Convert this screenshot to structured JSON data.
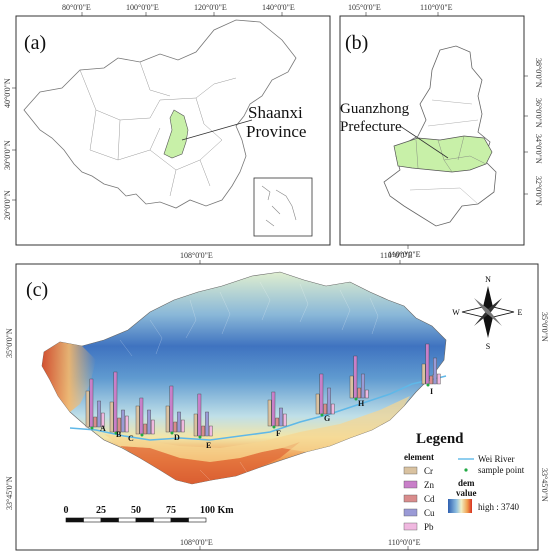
{
  "panel_a": {
    "label": "(a)",
    "top_ticks": [
      "80°0'0\"E",
      "100°0'0\"E",
      "120°0'0\"E",
      "140°0'0\"E"
    ],
    "left_ticks": [
      "40°0'0\"N",
      "30°0'0\"N",
      "20°0'0\"N"
    ],
    "callout": [
      "Shaanxi",
      "Province"
    ]
  },
  "panel_b": {
    "label": "(b)",
    "top_ticks": [
      "105°0'0\"E",
      "110°0'0\"E"
    ],
    "bottom_ticks": [
      "110°0'0\"E"
    ],
    "right_ticks": [
      "38°0'0\"N",
      "36°0'0\"N",
      "34°0'0\"N",
      "32°0'0\"N"
    ],
    "callout": [
      "Guanzhong",
      "Prefecture"
    ]
  },
  "panel_c": {
    "label": "(c)",
    "top_ticks": [
      "108°0'0\"E",
      "110°0'0\"E"
    ],
    "bottom_ticks": [
      "108°0'0\"E",
      "110°0'0\"E"
    ],
    "left_ticks": [
      "35°0'0\"N",
      "33°45'0\"N"
    ],
    "right_ticks": [
      "35°0'0\"N",
      "33°45'0\"N"
    ],
    "site_labels": [
      "A",
      "B",
      "C",
      "D",
      "E",
      "F",
      "G",
      "H",
      "I"
    ],
    "compass": {
      "n": "N",
      "s": "S",
      "e": "E",
      "w": "W"
    },
    "scalebar": {
      "ticks": [
        "0",
        "25",
        "50",
        "75",
        "100 Km"
      ]
    },
    "legend": {
      "title": "Legend",
      "element_heading": "element",
      "elements": [
        {
          "name": "Cr",
          "color": "#d9c2a0"
        },
        {
          "name": "Zn",
          "color": "#c97fc9"
        },
        {
          "name": "Cd",
          "color": "#d98c8c"
        },
        {
          "name": "Cu",
          "color": "#9a9ad6"
        },
        {
          "name": "Pb",
          "color": "#f0b8e0"
        }
      ],
      "river_label": "Wei  River",
      "sample_label": "sample point",
      "dem_title": [
        "dem",
        "value"
      ],
      "dem_high": "high : 3740"
    }
  },
  "colors": {
    "highlight": "#c8f0a8",
    "river": "#5fb8e8",
    "sample_point": "#22aa44"
  }
}
